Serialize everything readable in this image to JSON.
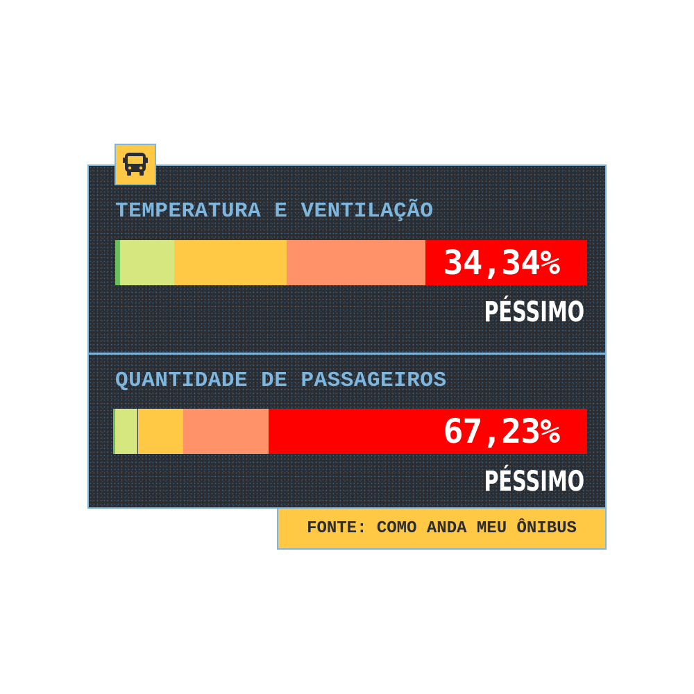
{
  "chart_data": [
    {
      "type": "bar",
      "orientation": "horizontal-stacked-100",
      "title": "TEMPERATURA E VENTILAÇÃO",
      "segments": [
        {
          "value": 1.0,
          "color": "#6cc05b"
        },
        {
          "value": 11.5,
          "color": "#d7e77f"
        },
        {
          "value": 23.8,
          "color": "#ffc845"
        },
        {
          "value": 29.4,
          "color": "#ff9268"
        },
        {
          "value": 34.34,
          "color": "#ff0000"
        }
      ],
      "highlight_label": "34,34%",
      "category_label": "PÉSSIMO"
    },
    {
      "type": "bar",
      "orientation": "horizontal-stacked-100",
      "title": "QUANTIDADE DE PASSAGEIROS",
      "segments": [
        {
          "value": 0.5,
          "color": "#6cc05b"
        },
        {
          "value": 4.7,
          "color": "#d7e77f"
        },
        {
          "value": 9.6,
          "color": "#ffc845"
        },
        {
          "value": 18.0,
          "color": "#ff9268"
        },
        {
          "value": 67.23,
          "color": "#ff0000"
        }
      ],
      "highlight_label": "67,23%",
      "category_label": "PÉSSIMO"
    }
  ],
  "source": "FONTE: COMO ANDA MEU ÔNIBUS",
  "icon": "bus-icon",
  "colors": {
    "background": "#2b2d31",
    "accent_blue": "#7eb6dd",
    "accent_yellow": "#ffc845"
  }
}
